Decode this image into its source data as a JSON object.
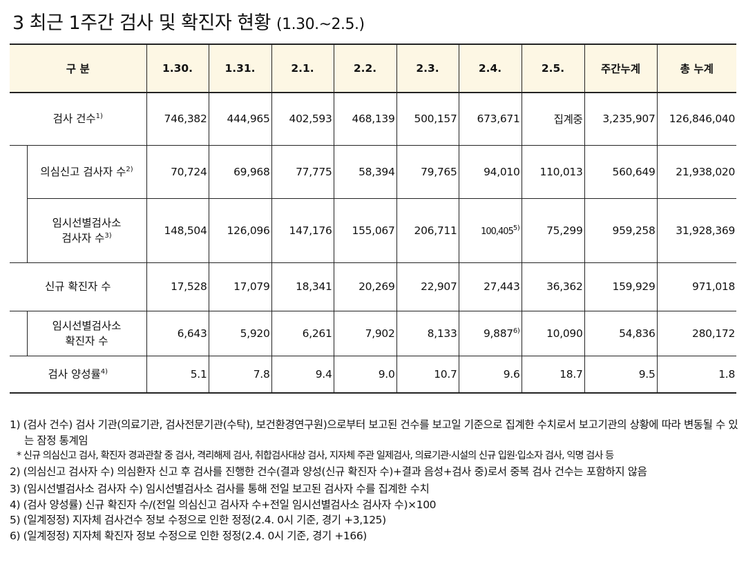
{
  "title": {
    "main": "3  최근 1주간 검사 및 확진자 현황",
    "range": "(1.30.~2.5.)"
  },
  "table": {
    "headers": [
      "구 분",
      "1.30.",
      "1.31.",
      "2.1.",
      "2.2.",
      "2.3.",
      "2.4.",
      "2.5.",
      "주간누계",
      "총 누계"
    ],
    "rows": [
      {
        "label": "검사 건수",
        "note": "1)",
        "values": [
          "746,382",
          "444,965",
          "402,593",
          "468,139",
          "500,157",
          "673,671",
          "집계중",
          "3,235,907",
          "126,846,040"
        ]
      },
      {
        "label": "의심신고 검사자 수",
        "note": "2)",
        "values": [
          "70,724",
          "69,968",
          "77,775",
          "58,394",
          "79,765",
          "94,010",
          "110,013",
          "560,649",
          "21,938,020"
        ]
      },
      {
        "label_line1": "임시선별검사소",
        "label_line2": "검사자 수",
        "note": "3)",
        "values": [
          "148,504",
          "126,096",
          "147,176",
          "155,067",
          "206,711",
          "100,405",
          "75,299",
          "959,258",
          "31,928,369"
        ],
        "value_note_index": 5,
        "value_note": "5)"
      },
      {
        "label": "신규 확진자 수",
        "values": [
          "17,528",
          "17,079",
          "18,341",
          "20,269",
          "22,907",
          "27,443",
          "36,362",
          "159,929",
          "971,018"
        ]
      },
      {
        "label_line1": "임시선별검사소",
        "label_line2": "확진자 수",
        "values": [
          "6,643",
          "5,920",
          "6,261",
          "7,902",
          "8,133",
          "9,887",
          "10,090",
          "54,836",
          "280,172"
        ],
        "value_note_index": 5,
        "value_note": "6)"
      },
      {
        "label": "검사 양성률",
        "note": "4)",
        "values": [
          "5.1",
          "7.8",
          "9.4",
          "9.0",
          "10.7",
          "9.6",
          "18.7",
          "9.5",
          "1.8"
        ]
      }
    ]
  },
  "notes": [
    "1) (검사 건수) 검사 기관(의료기관, 검사전문기관(수탁), 보건환경연구원)으로부터 보고된 건수를 보고일 기준으로 집계한 수치로서 보고기관의 상황에 따라 변동될 수 있는 잠정 통계임",
    "* 신규 의심신고 검사, 확진자 경과관찰 중 검사, 격리해제 검사, 취합검사대상 검사, 지자체 주관 일제검사, 의료기관·시설의 신규 입원·입소자 검사, 익명 검사 등",
    "2) (의심신고 검사자 수) 의심환자 신고 후 검사를 진행한 건수(결과 양성(신규 확진자 수)+결과 음성+검사 중)로서 중복 검사 건수는 포함하지 않음",
    "3) (임시선별검사소 검사자 수) 임시선별검사소 검사를 통해 전일 보고된 검사자 수를 집계한 수치",
    "4) (검사 양성률) 신규 확진자 수/(전일 의심신고 검사자 수+전일 임시선별검사소 검사자 수)×100",
    "5) (일계정정) 지자체 검사건수 정보 수정으로 인한 정정(2.4. 0시 기준, 경기 +3,125)",
    "6) (일계정정) 지자체 확진자 정보 수정으로 인한 정정(2.4. 0시 기준, 경기 +166)"
  ]
}
